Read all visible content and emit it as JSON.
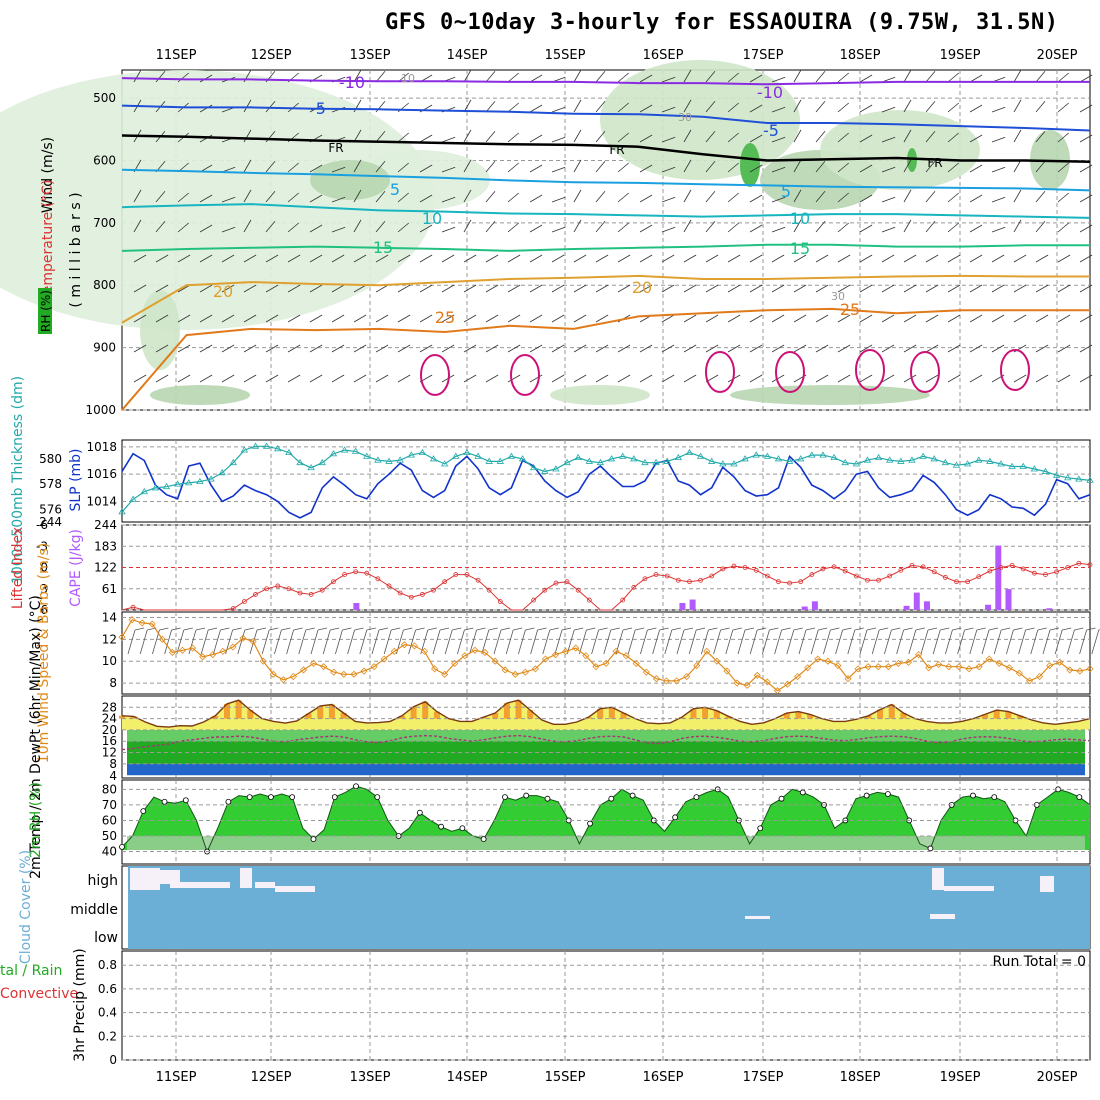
{
  "title": "GFS 0~10day 3-hourly for ESSAOUIRA (9.75W, 31.5N)",
  "colors": {
    "rh": "#22aa22",
    "temp": "#e07a1a",
    "cape": "#b35aff",
    "slp": "#1133cc",
    "thick": "#22aaaa",
    "li": "#dd3333",
    "cloud": "#6baed6",
    "purple": "#8a2be2"
  },
  "chart_data": [
    {
      "id": "upper",
      "type": "contour",
      "dates": [
        "11SEP",
        "12SEP",
        "13SEP",
        "14SEP",
        "15SEP",
        "16SEP",
        "17SEP",
        "18SEP",
        "19SEP",
        "20SEP"
      ],
      "ylabel_parts": {
        "rh": "RH (%)",
        "temp": "Temperature (°C)",
        "wind": "Wind (m/s)",
        "mb": "( m i l l i b a r s )"
      },
      "yticks": [
        500,
        600,
        700,
        800,
        900,
        1000
      ],
      "isotherms": [
        {
          "label": "-10",
          "color": "#8a2be2",
          "values": [
            468,
            470,
            470,
            472,
            473,
            473,
            474,
            474,
            476,
            476,
            478,
            476,
            474,
            474,
            474,
            474
          ]
        },
        {
          "label": "-5",
          "color": "#1f4fd6",
          "values": [
            512,
            515,
            515,
            517,
            518,
            520,
            522,
            525,
            526,
            530,
            540,
            540,
            542,
            545,
            548,
            552
          ]
        },
        {
          "label": "FR",
          "color": "#000000",
          "values": [
            560,
            562,
            565,
            568,
            570,
            572,
            574,
            575,
            578,
            590,
            600,
            598,
            596,
            600,
            600,
            602
          ]
        },
        {
          "label": "5",
          "color": "#1aa0e0",
          "values": [
            615,
            617,
            620,
            622,
            625,
            628,
            632,
            635,
            636,
            638,
            640,
            642,
            643,
            644,
            645,
            648
          ]
        },
        {
          "label": "10",
          "color": "#16b5c0",
          "values": [
            675,
            672,
            670,
            675,
            680,
            682,
            685,
            686,
            688,
            690,
            688,
            686,
            686,
            688,
            690,
            692
          ]
        },
        {
          "label": "15",
          "color": "#22c080",
          "values": [
            745,
            742,
            740,
            738,
            740,
            742,
            745,
            742,
            740,
            738,
            735,
            735,
            738,
            738,
            736,
            736
          ]
        },
        {
          "label": "20",
          "color": "#e0a030",
          "values": [
            860,
            800,
            795,
            798,
            800,
            795,
            790,
            788,
            785,
            790,
            790,
            788,
            786,
            785,
            786,
            786
          ]
        },
        {
          "label": "25",
          "color": "#e07a1a",
          "values": [
            1000,
            880,
            870,
            872,
            870,
            875,
            865,
            870,
            850,
            845,
            840,
            838,
            845,
            840,
            840,
            840
          ]
        }
      ],
      "labels_text": {
        "m10": "-10",
        "m5": "-5",
        "fr": "FR",
        "p5": "5",
        "p10": "10",
        "p15": "15",
        "p20": "20",
        "p25": "25",
        "r30": "30",
        "r10": "10"
      }
    },
    {
      "id": "slp",
      "type": "line",
      "ylabel_left": "1000~500mb Thickness (dm)",
      "ylabel_right": "SLP (mb)",
      "left_ticks": [
        "576",
        "578",
        "580"
      ],
      "right_ticks": [
        "1014",
        "1016",
        "1018"
      ],
      "bottom_tick": "244",
      "slp": [
        1016.2,
        1017.5,
        1017.0,
        1015.2,
        1014.5,
        1014.2,
        1016.6,
        1016.8,
        1015.2,
        1014.0,
        1014.4,
        1015.2,
        1014.8,
        1014.5,
        1014.0,
        1013.2,
        1012.8,
        1013.2,
        1015.0,
        1015.8,
        1015.2,
        1014.5,
        1014.2,
        1015.3,
        1016.0,
        1016.8,
        1016.3,
        1014.8,
        1014.3,
        1014.8,
        1016.6,
        1017.3,
        1016.4,
        1015.0,
        1014.5,
        1015.0,
        1017.0,
        1016.6,
        1015.5,
        1014.8,
        1014.3,
        1014.7,
        1016.0,
        1016.6,
        1015.8,
        1015.1,
        1015.1,
        1015.5,
        1016.8,
        1017.0,
        1015.5,
        1015.2,
        1014.5,
        1015.0,
        1016.5,
        1015.8,
        1014.8,
        1014.4,
        1014.5,
        1015.0,
        1017.3,
        1016.5,
        1015.2,
        1014.8,
        1014.2,
        1014.8,
        1016.0,
        1016.2,
        1015.0,
        1014.3,
        1014.5,
        1014.8,
        1015.9,
        1015.4,
        1014.5,
        1013.4,
        1013.0,
        1013.4,
        1014.5,
        1014.2,
        1013.6,
        1013.5,
        1013.0,
        1013.8,
        1015.6,
        1015.3,
        1014.2,
        1014.5
      ],
      "thickness": [
        575.8,
        576.8,
        577.4,
        577.7,
        577.8,
        578.0,
        578.1,
        578.2,
        578.4,
        578.9,
        579.7,
        580.7,
        581.0,
        581.0,
        580.8,
        580.5,
        579.7,
        579.3,
        579.7,
        580.4,
        580.7,
        580.6,
        580.2,
        579.9,
        579.8,
        579.9,
        580.3,
        580.5,
        580.0,
        579.6,
        580.2,
        580.5,
        580.2,
        579.8,
        579.8,
        580.2,
        580.0,
        579.3,
        579.0,
        579.2,
        579.7,
        580.1,
        579.8,
        579.7,
        580.0,
        580.2,
        580.0,
        579.7,
        579.7,
        579.8,
        580.1,
        580.5,
        580.2,
        579.8,
        579.6,
        579.6,
        580.0,
        580.3,
        580.2,
        580.0,
        579.8,
        580.0,
        580.3,
        580.3,
        580.1,
        579.7,
        579.6,
        579.9,
        580.1,
        579.9,
        579.8,
        579.9,
        580.2,
        580.0,
        579.7,
        579.5,
        579.6,
        579.9,
        579.8,
        579.6,
        579.4,
        579.4,
        579.2,
        579.0,
        578.7,
        578.5,
        578.4,
        578.3
      ]
    },
    {
      "id": "cape",
      "type": "bar+line",
      "ylabel_left": "Lifted Index",
      "ylabel_right": "CAPE (J/kg)",
      "li_ticks": [
        "-6",
        "-3",
        "0",
        "3",
        "6"
      ],
      "cape_ticks": [
        "244",
        "183",
        "122",
        "61"
      ],
      "li": [
        6.0,
        5.6,
        6.0,
        6.0,
        6.0,
        6.0,
        6.0,
        6.0,
        6.0,
        6.0,
        5.8,
        4.8,
        3.8,
        3.0,
        2.6,
        3.0,
        3.6,
        3.8,
        3.2,
        2.0,
        1.0,
        0.6,
        0.8,
        1.6,
        2.6,
        3.6,
        4.2,
        3.8,
        3.2,
        2.0,
        1.0,
        1.0,
        1.8,
        3.2,
        4.8,
        6.0,
        6.0,
        4.6,
        3.2,
        2.2,
        2.0,
        3.2,
        4.6,
        6.0,
        6.0,
        4.6,
        2.8,
        1.6,
        1.0,
        1.2,
        1.8,
        2.0,
        1.8,
        1.2,
        0.2,
        -0.2,
        0.0,
        0.4,
        1.2,
        2.0,
        2.2,
        2.0,
        1.0,
        0.2,
        -0.1,
        0.5,
        1.2,
        1.8,
        1.8,
        1.2,
        0.4,
        -0.3,
        -0.1,
        0.6,
        1.4,
        2.0,
        2.0,
        1.3,
        0.5,
        0.0,
        -0.3,
        0.2,
        0.8,
        1.0,
        0.6,
        0.0,
        -0.6,
        -0.4
      ],
      "cape": [
        0,
        0,
        0,
        0,
        0,
        0,
        0,
        0,
        0,
        0,
        0,
        0,
        0,
        0,
        0,
        0,
        0,
        0,
        0,
        0,
        0,
        0,
        0,
        20,
        0,
        0,
        0,
        0,
        0,
        0,
        0,
        0,
        0,
        0,
        0,
        0,
        0,
        0,
        0,
        0,
        0,
        0,
        0,
        0,
        0,
        0,
        0,
        0,
        0,
        0,
        0,
        0,
        0,
        0,
        0,
        20,
        30,
        0,
        0,
        0,
        0,
        0,
        0,
        0,
        0,
        0,
        0,
        10,
        25,
        0,
        0,
        0,
        0,
        0,
        0,
        0,
        0,
        12,
        50,
        25,
        0,
        0,
        0,
        0,
        0,
        15,
        185,
        60,
        0,
        0,
        0,
        5,
        0,
        0,
        0,
        0
      ]
    },
    {
      "id": "wind",
      "type": "line",
      "ylabel": "10m Wind Speed & Barbs (m/s)",
      "ticks": [
        "8",
        "10",
        "12",
        "14"
      ],
      "speed": [
        12.2,
        13.8,
        13.5,
        13.4,
        12.0,
        10.8,
        11.0,
        11.2,
        10.4,
        10.6,
        10.9,
        11.3,
        12.1,
        11.8,
        10.0,
        8.8,
        8.3,
        8.6,
        9.2,
        9.8,
        9.5,
        9.0,
        8.8,
        8.8,
        9.1,
        9.5,
        10.2,
        10.9,
        11.5,
        11.4,
        10.9,
        9.3,
        8.8,
        9.8,
        10.5,
        11.0,
        10.8,
        10.0,
        9.2,
        8.8,
        9.0,
        9.3,
        10.2,
        10.6,
        10.9,
        11.2,
        10.5,
        9.5,
        9.8,
        10.9,
        10.5,
        9.8,
        9.0,
        8.4,
        8.2,
        8.2,
        8.6,
        9.6,
        10.9,
        10.0,
        9.1,
        8.0,
        7.8,
        8.7,
        8.1,
        7.3,
        7.9,
        8.6,
        9.4,
        10.2,
        10.0,
        9.6,
        8.4,
        9.3,
        9.5,
        9.5,
        9.5,
        9.8,
        9.9,
        10.6,
        9.4,
        9.7,
        9.5,
        9.5,
        9.3,
        9.5,
        10.2,
        9.8,
        9.4,
        8.9,
        8.2,
        8.6,
        9.6,
        9.9,
        9.2,
        9.1,
        9.3
      ]
    },
    {
      "id": "temp",
      "type": "area",
      "ylabel": "2m Temp / 2m DewPt (6hr Min/Max) (°C)",
      "ticks": [
        "8",
        "12",
        "16",
        "20",
        "24",
        "28"
      ],
      "bottom_tick": "4",
      "temp": [
        25.0,
        24.8,
        22.8,
        21.3,
        21.0,
        21.5,
        21.4,
        22.8,
        25.0,
        29.2,
        30.5,
        27.0,
        24.0,
        23.0,
        22.4,
        23.2,
        25.8,
        28.5,
        29.0,
        26.0,
        23.0,
        22.5,
        22.6,
        23.0,
        25.0,
        28.2,
        30.0,
        26.5,
        24.0,
        23.0,
        23.0,
        24.5,
        26.0,
        29.5,
        30.5,
        27.0,
        23.5,
        22.0,
        22.0,
        22.8,
        24.5,
        27.5,
        28.0,
        26.0,
        24.0,
        22.5,
        22.2,
        22.5,
        24.5,
        27.5,
        28.0,
        26.8,
        24.8,
        23.0,
        22.0,
        22.5,
        24.0,
        26.0,
        26.5,
        25.5,
        24.0,
        23.0,
        23.0,
        23.8,
        25.0,
        27.2,
        29.0,
        26.0,
        24.0,
        23.0,
        22.5,
        22.5,
        23.0,
        24.0,
        25.5,
        27.0,
        26.5,
        25.0,
        23.5,
        22.5,
        22.0,
        22.5,
        23.0,
        24.0
      ],
      "dewpt": [
        13.0,
        13.5,
        14.0,
        14.5,
        15.0,
        16.0,
        16.5,
        17.0,
        17.5,
        17.5,
        17.8,
        17.5,
        16.8,
        16.0,
        15.8,
        16.5,
        17.0,
        17.5,
        17.8,
        17.5,
        16.5,
        15.8,
        15.5,
        16.2,
        17.2,
        17.8,
        18.0,
        17.8,
        17.0,
        16.5,
        16.0,
        16.5,
        17.2,
        17.8,
        18.0,
        17.6,
        16.8,
        16.0,
        15.8,
        16.2,
        17.0,
        17.6,
        17.8,
        17.5,
        16.5,
        15.5,
        15.2,
        15.8,
        17.0,
        17.6,
        17.8,
        17.4,
        16.8,
        16.0,
        15.8,
        16.2,
        17.0,
        17.6,
        17.8,
        17.6,
        17.0,
        16.4,
        16.2,
        16.6,
        17.2,
        17.6,
        17.8,
        17.6,
        17.0,
        16.0,
        15.5,
        15.8,
        16.8,
        17.4,
        17.6,
        17.5,
        17.0,
        16.2,
        15.8,
        16.0,
        16.5,
        16.8,
        16.5,
        16.2
      ]
    },
    {
      "id": "rh",
      "type": "area",
      "ylabel": "2m RH (%)",
      "ticks": [
        "40",
        "50",
        "60",
        "70",
        "80"
      ],
      "rh": [
        43,
        50,
        66,
        75,
        72,
        71,
        73,
        60,
        40,
        55,
        72,
        76,
        75,
        77,
        75,
        77,
        75,
        55,
        48,
        54,
        75,
        78,
        82,
        80,
        75,
        60,
        50,
        55,
        65,
        60,
        56,
        53,
        55,
        50,
        48,
        60,
        75,
        73,
        76,
        76,
        74,
        72,
        60,
        45,
        58,
        70,
        74,
        80,
        76,
        73,
        60,
        53,
        62,
        72,
        75,
        78,
        80,
        75,
        60,
        45,
        55,
        70,
        74,
        80,
        78,
        75,
        70,
        55,
        60,
        74,
        76,
        78,
        77,
        75,
        60,
        45,
        42,
        60,
        70,
        75,
        76,
        74,
        75,
        72,
        60,
        50,
        70,
        75,
        80,
        78,
        75,
        70
      ]
    },
    {
      "id": "cloud",
      "type": "bar",
      "ylabel": "Cloud Cover (%)",
      "levels": [
        "high",
        "middle",
        "low"
      ]
    },
    {
      "id": "precip",
      "type": "bar",
      "ylabel_parts": {
        "a": "tal / Rain",
        "b": "Convective",
        "c": "3hr Precip (mm)"
      },
      "ticks": [
        "0",
        "0.2",
        "0.4",
        "0.6",
        "0.8"
      ],
      "run_total": "Run Total = 0",
      "values": []
    }
  ]
}
